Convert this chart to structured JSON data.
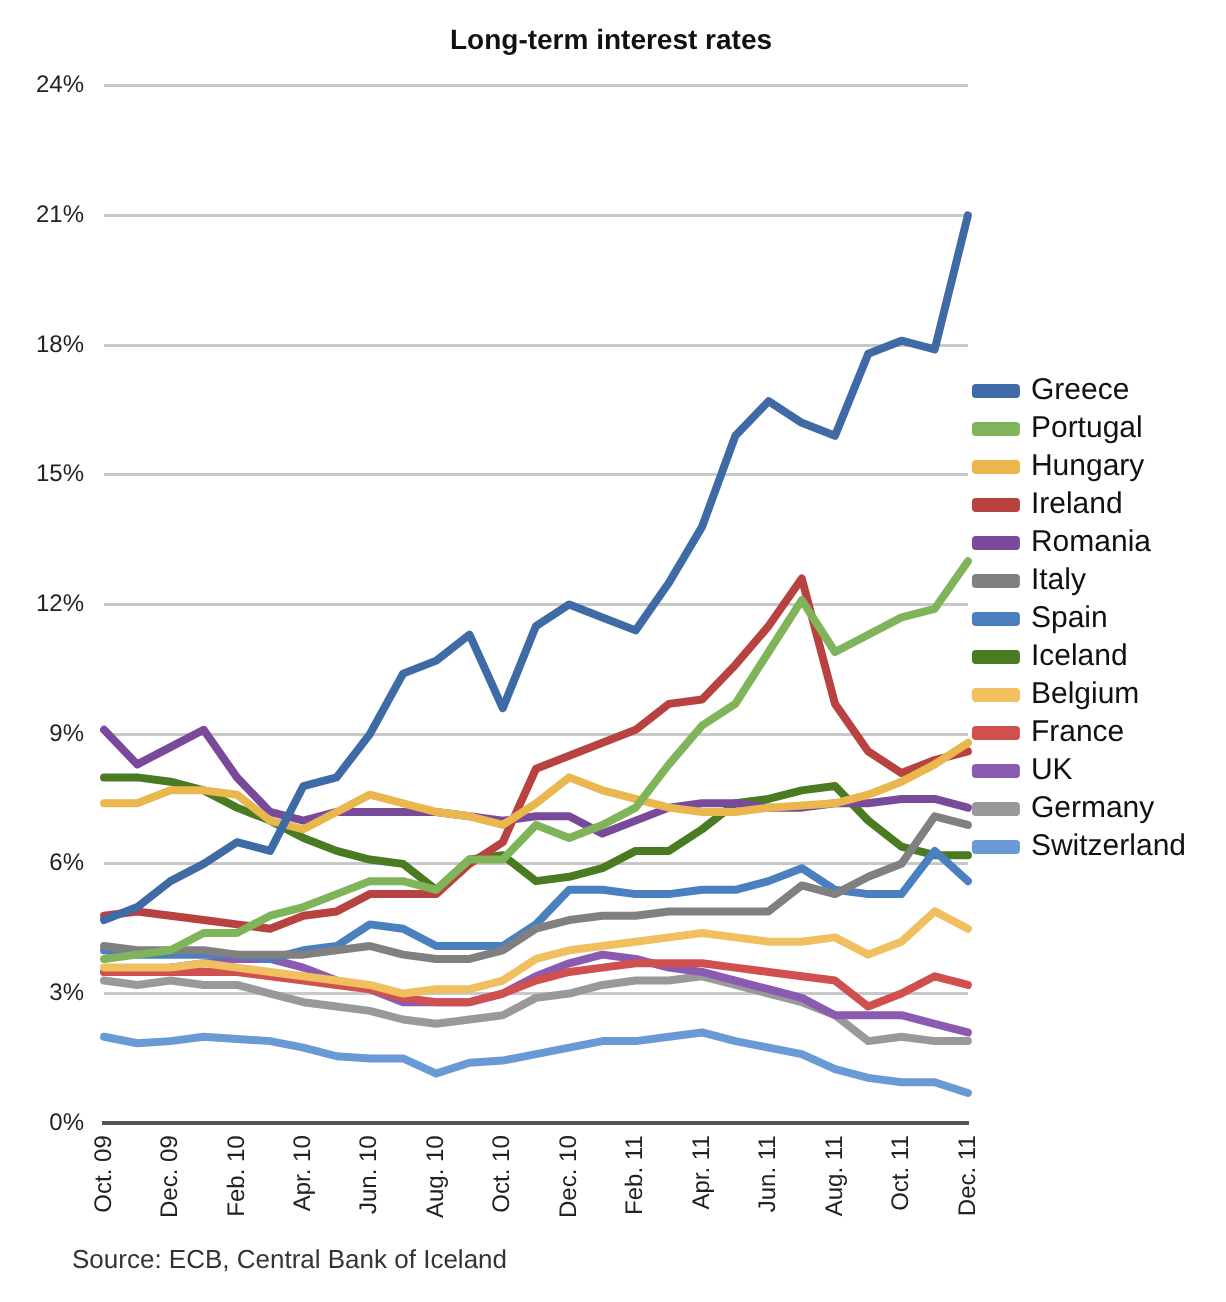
{
  "chart_data": {
    "type": "line",
    "title": "Long-term interest rates",
    "categories": [
      "Oct. 09",
      null,
      "Dec. 09",
      null,
      "Feb. 10",
      null,
      "Apr. 10",
      null,
      "Jun. 10",
      null,
      "Aug. 10",
      null,
      "Oct. 10",
      null,
      "Dec. 10",
      null,
      "Feb. 11",
      null,
      "Apr. 11",
      null,
      "Jun. 11",
      null,
      "Aug. 11",
      null,
      "Oct. 11",
      null,
      "Dec. 11"
    ],
    "series": [
      {
        "name": "Greece",
        "color": "#3e6aa5",
        "values": [
          4.7,
          5.0,
          5.6,
          6.0,
          6.5,
          6.3,
          7.8,
          8.0,
          9.0,
          10.4,
          10.7,
          11.3,
          9.6,
          11.5,
          12.0,
          11.7,
          11.4,
          12.5,
          13.8,
          15.9,
          16.7,
          16.2,
          15.9,
          17.8,
          18.1,
          17.9,
          21.0
        ]
      },
      {
        "name": "Portugal",
        "color": "#7fb45a",
        "values": [
          3.8,
          3.9,
          4.0,
          4.4,
          4.4,
          4.8,
          5.0,
          5.3,
          5.6,
          5.6,
          5.4,
          6.1,
          6.1,
          6.9,
          6.6,
          6.9,
          7.3,
          8.3,
          9.2,
          9.7,
          10.9,
          12.1,
          10.9,
          11.3,
          11.7,
          11.9,
          13.0
        ]
      },
      {
        "name": "Hungary",
        "color": "#eab74f",
        "values": [
          7.4,
          7.4,
          7.7,
          7.7,
          7.6,
          7.0,
          6.8,
          7.2,
          7.6,
          7.4,
          7.2,
          7.1,
          6.9,
          7.4,
          8.0,
          7.7,
          7.5,
          7.3,
          7.2,
          7.2,
          7.3,
          7.35,
          7.4,
          7.6,
          7.9,
          8.3,
          8.8
        ]
      },
      {
        "name": "Ireland",
        "color": "#b84240",
        "values": [
          4.8,
          4.9,
          4.8,
          4.7,
          4.6,
          4.5,
          4.8,
          4.9,
          5.3,
          5.3,
          5.3,
          6.0,
          6.5,
          8.2,
          8.5,
          8.8,
          9.1,
          9.7,
          9.8,
          10.6,
          11.5,
          12.6,
          9.7,
          8.6,
          8.1,
          8.4,
          8.6
        ]
      },
      {
        "name": "Romania",
        "color": "#7a4a9a",
        "values": [
          9.1,
          8.3,
          8.7,
          9.1,
          8.0,
          7.2,
          7.0,
          7.2,
          7.2,
          7.2,
          7.2,
          7.1,
          7.0,
          7.1,
          7.1,
          6.7,
          7.0,
          7.3,
          7.4,
          7.4,
          7.3,
          7.3,
          7.4,
          7.4,
          7.5,
          7.5,
          7.3
        ]
      },
      {
        "name": "Italy",
        "color": "#808080",
        "values": [
          4.1,
          4.0,
          4.0,
          4.0,
          3.9,
          3.9,
          3.9,
          4.0,
          4.1,
          3.9,
          3.8,
          3.8,
          4.0,
          4.5,
          4.7,
          4.8,
          4.8,
          4.9,
          4.9,
          4.9,
          4.9,
          5.5,
          5.3,
          5.7,
          6.0,
          7.1,
          6.9
        ]
      },
      {
        "name": "Spain",
        "color": "#4a7fc0",
        "values": [
          4.0,
          3.9,
          3.9,
          3.9,
          3.9,
          3.8,
          4.0,
          4.1,
          4.6,
          4.5,
          4.1,
          4.1,
          4.1,
          4.6,
          5.4,
          5.4,
          5.3,
          5.3,
          5.4,
          5.4,
          5.6,
          5.9,
          5.4,
          5.3,
          5.3,
          6.3,
          5.6
        ]
      },
      {
        "name": "Iceland",
        "color": "#4a7a22",
        "values": [
          8.0,
          8.0,
          7.9,
          7.7,
          7.3,
          7.0,
          6.6,
          6.3,
          6.1,
          6.0,
          5.4,
          6.1,
          6.2,
          5.6,
          5.7,
          5.9,
          6.3,
          6.3,
          6.8,
          7.4,
          7.5,
          7.7,
          7.8,
          7.0,
          6.4,
          6.2,
          6.2
        ]
      },
      {
        "name": "Belgium",
        "color": "#f0bf60",
        "values": [
          3.6,
          3.6,
          3.6,
          3.7,
          3.6,
          3.5,
          3.4,
          3.3,
          3.2,
          3.0,
          3.1,
          3.1,
          3.3,
          3.8,
          4.0,
          4.1,
          4.2,
          4.3,
          4.4,
          4.3,
          4.2,
          4.2,
          4.3,
          3.9,
          4.2,
          4.9,
          4.5
        ]
      },
      {
        "name": "France",
        "color": "#d0504f",
        "values": [
          3.5,
          3.5,
          3.5,
          3.5,
          3.5,
          3.4,
          3.3,
          3.2,
          3.1,
          2.9,
          2.8,
          2.8,
          3.0,
          3.3,
          3.5,
          3.6,
          3.7,
          3.7,
          3.7,
          3.6,
          3.5,
          3.4,
          3.3,
          2.7,
          3.0,
          3.4,
          3.2
        ]
      },
      {
        "name": "UK",
        "color": "#8a5bb0",
        "values": [
          3.5,
          3.5,
          3.6,
          3.7,
          3.8,
          3.8,
          3.6,
          3.3,
          3.1,
          2.8,
          2.8,
          2.8,
          3.0,
          3.4,
          3.7,
          3.9,
          3.8,
          3.6,
          3.5,
          3.3,
          3.1,
          2.9,
          2.5,
          2.5,
          2.5,
          2.3,
          2.1
        ]
      },
      {
        "name": "Germany",
        "color": "#999999",
        "values": [
          3.3,
          3.2,
          3.3,
          3.2,
          3.2,
          3.0,
          2.8,
          2.7,
          2.6,
          2.4,
          2.3,
          2.4,
          2.5,
          2.9,
          3.0,
          3.2,
          3.3,
          3.3,
          3.4,
          3.2,
          3.0,
          2.8,
          2.5,
          1.9,
          2.0,
          1.9,
          1.9
        ]
      },
      {
        "name": "Switzerland",
        "color": "#6a9ad6",
        "values": [
          2.0,
          1.85,
          1.9,
          2.0,
          1.95,
          1.9,
          1.75,
          1.55,
          1.5,
          1.5,
          1.15,
          1.4,
          1.45,
          1.6,
          1.75,
          1.9,
          1.9,
          2.0,
          2.1,
          1.9,
          1.75,
          1.6,
          1.25,
          1.05,
          0.95,
          0.95,
          0.7
        ]
      }
    ],
    "ylim": [
      0,
      24
    ],
    "yticks": [
      {
        "value": 0,
        "label": "0%"
      },
      {
        "value": 3,
        "label": "3%"
      },
      {
        "value": 6,
        "label": "6%"
      },
      {
        "value": 9,
        "label": "9%"
      },
      {
        "value": 12,
        "label": "12%"
      },
      {
        "value": 15,
        "label": "15%"
      },
      {
        "value": 18,
        "label": "18%"
      },
      {
        "value": 21,
        "label": "21%"
      },
      {
        "value": 24,
        "label": "24%"
      }
    ],
    "grid": "y",
    "legend": "right",
    "marker": "none",
    "line_style": "solid",
    "annotations": [
      "Source: ECB, Central Bank of Iceland"
    ]
  }
}
